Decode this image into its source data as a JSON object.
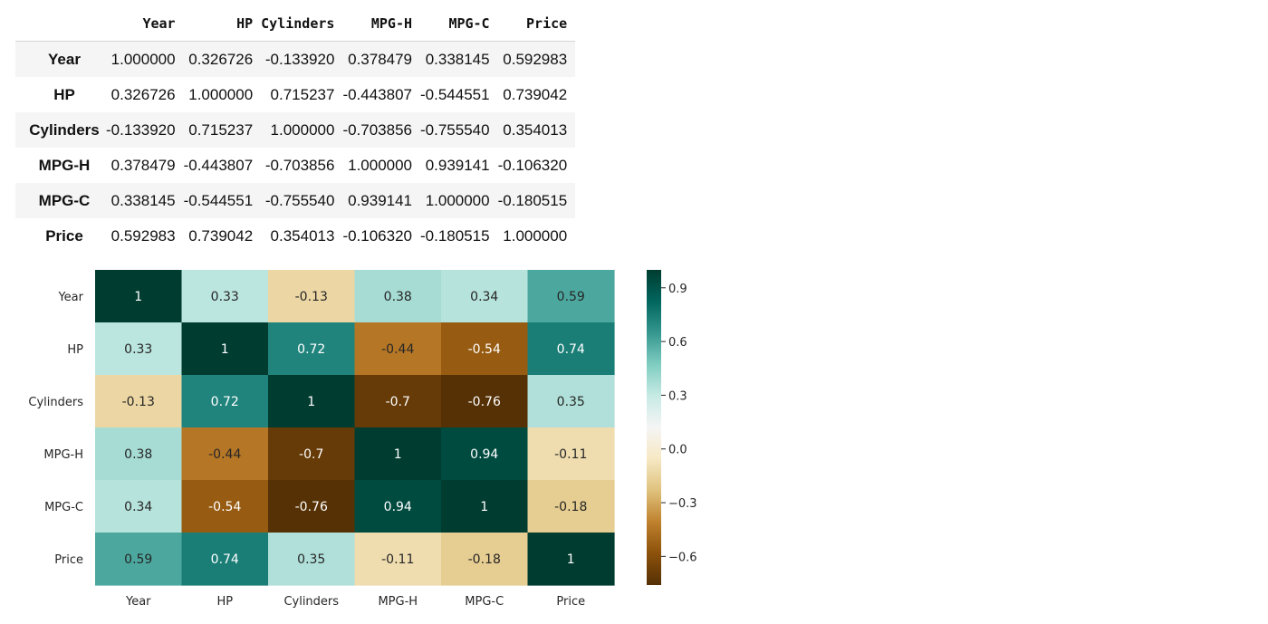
{
  "table": {
    "columns": [
      "Year",
      "HP",
      "Cylinders",
      "MPG-H",
      "MPG-C",
      "Price"
    ],
    "rows": [
      {
        "label": "Year",
        "cells": [
          "1.000000",
          "0.326726",
          "-0.133920",
          "0.378479",
          "0.338145",
          "0.592983"
        ]
      },
      {
        "label": "HP",
        "cells": [
          "0.326726",
          "1.000000",
          "0.715237",
          "-0.443807",
          "-0.544551",
          "0.739042"
        ]
      },
      {
        "label": "Cylinders",
        "cells": [
          "-0.133920",
          "0.715237",
          "1.000000",
          "-0.703856",
          "-0.755540",
          "0.354013"
        ]
      },
      {
        "label": "MPG-H",
        "cells": [
          "0.378479",
          "-0.443807",
          "-0.703856",
          "1.000000",
          "0.939141",
          "-0.106320"
        ]
      },
      {
        "label": "MPG-C",
        "cells": [
          "0.338145",
          "-0.544551",
          "-0.755540",
          "0.939141",
          "1.000000",
          "-0.180515"
        ]
      },
      {
        "label": "Price",
        "cells": [
          "0.592983",
          "0.739042",
          "0.354013",
          "-0.106320",
          "-0.180515",
          "1.000000"
        ]
      }
    ]
  },
  "chart_data": {
    "type": "heatmap",
    "title": "",
    "xlabel": "",
    "ylabel": "",
    "x_categories": [
      "Year",
      "HP",
      "Cylinders",
      "MPG-H",
      "MPG-C",
      "Price"
    ],
    "y_categories": [
      "Year",
      "HP",
      "Cylinders",
      "MPG-H",
      "MPG-C",
      "Price"
    ],
    "values": [
      [
        1.0,
        0.326726,
        -0.13392,
        0.378479,
        0.338145,
        0.592983
      ],
      [
        0.326726,
        1.0,
        0.715237,
        -0.443807,
        -0.544551,
        0.739042
      ],
      [
        -0.13392,
        0.715237,
        1.0,
        -0.703856,
        -0.75554,
        0.354013
      ],
      [
        0.378479,
        -0.443807,
        -0.703856,
        1.0,
        0.939141,
        -0.10632
      ],
      [
        0.338145,
        -0.544551,
        -0.75554,
        0.939141,
        1.0,
        -0.180515
      ],
      [
        0.592983,
        0.739042,
        0.354013,
        -0.10632,
        -0.180515,
        1.0
      ]
    ],
    "annotations": [
      [
        "1",
        "0.33",
        "-0.13",
        "0.38",
        "0.34",
        "0.59"
      ],
      [
        "0.33",
        "1",
        "0.72",
        "-0.44",
        "-0.54",
        "0.74"
      ],
      [
        "-0.13",
        "0.72",
        "1",
        "-0.7",
        "-0.76",
        "0.35"
      ],
      [
        "0.38",
        "-0.44",
        "-0.7",
        "1",
        "0.94",
        "-0.11"
      ],
      [
        "0.34",
        "-0.54",
        "-0.76",
        "0.94",
        "1",
        "-0.18"
      ],
      [
        "0.59",
        "0.74",
        "0.35",
        "-0.11",
        "-0.18",
        "1"
      ]
    ],
    "colormap": "BrBG",
    "vmin": -0.76,
    "vmax": 1.0,
    "colorbar_ticks": [
      0.9,
      0.6,
      0.3,
      0.0,
      -0.3,
      -0.6
    ],
    "colorbar_tick_labels": [
      "0.9",
      "0.6",
      "0.3",
      "0.0",
      "−0.3",
      "−0.6"
    ],
    "colormap_stops": [
      "#543005",
      "#8c510a",
      "#bf812d",
      "#dfc27d",
      "#f6e8c3",
      "#f5f5f5",
      "#c7eae5",
      "#80cdc1",
      "#35978f",
      "#01665e",
      "#003c30"
    ],
    "annotation_colors": {
      "light": "#ffffff",
      "dark": "#262626"
    },
    "label_color": "#262626"
  }
}
